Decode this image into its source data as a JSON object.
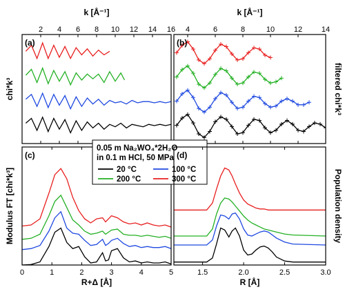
{
  "chart_data": [
    {
      "panel": "(a)",
      "type": "line",
      "xlabel": "k [Å⁻¹]",
      "ylabel": "chi*k³",
      "xlim": [
        0,
        16
      ],
      "xticks": [
        2,
        4,
        6,
        8,
        10,
        12,
        14,
        16
      ],
      "series": [
        {
          "color": "#000000",
          "x": [
            0.4,
            1,
            1.6,
            2.2,
            2.8,
            3.4,
            4,
            4.6,
            5.2,
            5.8,
            6.4,
            7,
            7.6,
            8.2,
            8.8,
            9.4,
            10,
            10.6,
            11.2,
            11.8,
            12.4,
            13,
            13.6,
            14.2,
            14.8,
            15.4,
            16
          ],
          "y": [
            0.2,
            0.6,
            -0.4,
            0.7,
            -0.5,
            0.6,
            -0.3,
            0.5,
            -0.6,
            0.4,
            -0.4,
            0.3,
            -0.2,
            0.2,
            -0.3,
            0.1,
            -0.1,
            0.2,
            -0.2,
            0.1,
            0.0,
            -0.1,
            0.1,
            0.0,
            0.1,
            0.0,
            0.1
          ]
        },
        {
          "color": "#1f49e0",
          "x": [
            0.4,
            1,
            1.6,
            2.2,
            2.8,
            3.4,
            4,
            4.6,
            5.2,
            5.8,
            6.4,
            7,
            7.6,
            8.2,
            8.8,
            9.4,
            10,
            10.6,
            11.2,
            11.8,
            12.4,
            13,
            13.6,
            14.2,
            14.8,
            15.4,
            16
          ],
          "y": [
            2.2,
            2.6,
            1.6,
            2.7,
            1.5,
            2.6,
            1.7,
            2.5,
            1.4,
            2.4,
            1.6,
            2.3,
            1.8,
            2.2,
            1.7,
            2.1,
            1.9,
            2.0,
            1.8,
            2.1,
            1.9,
            2.0,
            2.0,
            1.9,
            2.0,
            1.9,
            2.0
          ]
        },
        {
          "color": "#22b022",
          "x": [
            0.4,
            1,
            1.6,
            2.2,
            2.8,
            3.4,
            4,
            4.6,
            5.2,
            5.8,
            6.4,
            7,
            7.6,
            8.2,
            8.8,
            9.4,
            10,
            10.6,
            11
          ],
          "y": [
            4.2,
            4.7,
            3.6,
            4.8,
            3.5,
            4.6,
            3.7,
            4.5,
            3.4,
            4.4,
            3.8,
            4.3,
            3.9,
            4.3,
            3.6,
            4.5,
            3.7,
            4.4,
            3.8
          ]
        },
        {
          "color": "#e81e1e",
          "x": [
            0.4,
            1,
            1.6,
            2.2,
            2.8,
            3.4,
            4,
            4.6,
            5.2,
            5.8,
            6.4,
            7,
            7.6,
            8.2,
            8.8,
            9.4
          ],
          "y": [
            6.2,
            6.7,
            5.6,
            6.9,
            5.6,
            6.7,
            5.7,
            6.6,
            5.6,
            6.5,
            5.9,
            6.4,
            5.8,
            6.3,
            5.9,
            6.2
          ]
        }
      ]
    },
    {
      "panel": "(b)",
      "type": "line",
      "xlabel": "k [Å⁻¹]",
      "ylabel": "filtered chi*k³",
      "xlim": [
        3,
        14
      ],
      "xticks": [
        4,
        6,
        8,
        10,
        12,
        14
      ],
      "series": [
        {
          "color": "#000000",
          "x": [
            3.2,
            3.6,
            4,
            4.4,
            4.8,
            5.2,
            5.6,
            6,
            6.4,
            6.8,
            7.2,
            7.6,
            8,
            8.4,
            8.8,
            9.2,
            9.6,
            10,
            10.4,
            10.8,
            11.2,
            11.6,
            12,
            12.4,
            12.8,
            13.2,
            13.6,
            14
          ],
          "y": [
            0.1,
            0.7,
            1.0,
            0.3,
            -0.6,
            -0.9,
            -0.4,
            0.4,
            0.8,
            0.6,
            0.0,
            -0.6,
            -0.5,
            0.1,
            0.6,
            0.5,
            -0.1,
            -0.5,
            -0.3,
            0.2,
            0.5,
            0.2,
            -0.3,
            -0.4,
            0.0,
            0.3,
            0.2,
            -0.1
          ]
        },
        {
          "color": "#1f49e0",
          "x": [
            3.2,
            3.6,
            4,
            4.4,
            4.8,
            5.2,
            5.6,
            6,
            6.4,
            6.8,
            7.2,
            7.6,
            8,
            8.4,
            8.8,
            9.2,
            9.6,
            10,
            10.4,
            10.8,
            11.2,
            11.6,
            12,
            12.4,
            12.8
          ],
          "y": [
            2.1,
            2.7,
            3.0,
            2.4,
            1.5,
            1.2,
            1.6,
            2.3,
            2.8,
            2.6,
            2.0,
            1.5,
            1.6,
            2.1,
            2.5,
            2.4,
            1.9,
            1.6,
            1.7,
            2.1,
            2.3,
            2.1,
            1.8,
            1.8,
            2.0
          ]
        },
        {
          "color": "#22b022",
          "x": [
            3.2,
            3.6,
            4,
            4.4,
            4.8,
            5.2,
            5.6,
            6,
            6.4,
            6.8,
            7.2,
            7.6,
            8,
            8.4,
            8.8,
            9.2,
            9.6,
            10,
            10.4,
            10.8
          ],
          "y": [
            4.1,
            4.7,
            5.0,
            4.4,
            3.5,
            3.2,
            3.6,
            4.3,
            4.8,
            4.6,
            4.0,
            3.5,
            3.6,
            4.1,
            4.5,
            4.4,
            3.9,
            3.6,
            3.7,
            4.0
          ]
        },
        {
          "color": "#e81e1e",
          "x": [
            3.2,
            3.6,
            4,
            4.4,
            4.8,
            5.2,
            5.6,
            6,
            6.4,
            6.8,
            7.2,
            7.6,
            8,
            8.4,
            8.8,
            9.2,
            9.6,
            10
          ],
          "y": [
            6.1,
            6.7,
            7.0,
            6.4,
            5.5,
            5.2,
            5.6,
            6.3,
            6.8,
            6.6,
            6.0,
            5.5,
            5.6,
            6.1,
            6.5,
            6.4,
            5.9,
            5.7
          ]
        }
      ]
    },
    {
      "panel": "(c)",
      "type": "line",
      "xlabel": "R+Δ [Å]",
      "ylabel": "Modulus FT [chi*k³]",
      "xlim": [
        0,
        5
      ],
      "xticks": [
        0,
        1,
        2,
        3,
        4,
        5
      ],
      "legend": {
        "title_lines": [
          "0.05 m Na₂WO₄*2H₂O",
          "in 0.1 m HCl, 50 MPa"
        ],
        "entries": [
          {
            "label": "20 °C",
            "color": "#000000"
          },
          {
            "label": "100 °C",
            "color": "#1f49e0"
          },
          {
            "label": "200 °C",
            "color": "#22b022"
          },
          {
            "label": "300 °C",
            "color": "#e81e1e"
          }
        ]
      },
      "series": [
        {
          "color": "#000000",
          "x": [
            0,
            0.3,
            0.6,
            0.9,
            1.1,
            1.3,
            1.5,
            1.7,
            1.9,
            2.1,
            2.3,
            2.5,
            2.7,
            2.8,
            2.9,
            3.0,
            3.2,
            3.4,
            3.6,
            3.8,
            4.0,
            4.2,
            4.4,
            4.6,
            4.8,
            5.0
          ],
          "y": [
            0.0,
            0.05,
            0.3,
            1.8,
            3.2,
            3.6,
            2.2,
            1.6,
            1.8,
            0.8,
            0.2,
            0.3,
            1.2,
            0.4,
            0.5,
            1.4,
            1.6,
            0.7,
            0.3,
            0.4,
            0.2,
            0.3,
            0.2,
            0.2,
            0.3,
            0.1
          ]
        },
        {
          "color": "#1f49e0",
          "x": [
            0,
            0.3,
            0.6,
            0.9,
            1.1,
            1.3,
            1.5,
            1.7,
            1.9,
            2.1,
            2.3,
            2.5,
            2.7,
            2.8,
            2.9,
            3.0,
            3.2,
            3.4,
            3.6,
            3.8,
            4.0,
            4.2,
            4.4,
            4.6,
            4.8,
            5.0
          ],
          "y": [
            1.5,
            1.6,
            1.9,
            3.3,
            4.6,
            5.2,
            3.6,
            3.1,
            3.0,
            2.4,
            1.9,
            2.0,
            2.5,
            1.9,
            2.1,
            2.4,
            2.6,
            2.1,
            1.8,
            1.9,
            1.7,
            1.8,
            1.7,
            1.7,
            1.8,
            1.6
          ]
        },
        {
          "color": "#22b022",
          "x": [
            0,
            0.3,
            0.6,
            0.9,
            1.1,
            1.3,
            1.5,
            1.7,
            1.9,
            2.1,
            2.3,
            2.5,
            2.7,
            2.8,
            2.9,
            3.0,
            3.2,
            3.4,
            3.6,
            3.8,
            4.0,
            4.2,
            4.4,
            4.6,
            4.8,
            5.0
          ],
          "y": [
            2.5,
            2.6,
            3.0,
            4.8,
            6.2,
            6.8,
            5.6,
            4.4,
            3.9,
            3.3,
            3.0,
            3.1,
            3.3,
            3.0,
            3.2,
            3.4,
            3.5,
            3.0,
            2.9,
            2.9,
            2.8,
            2.9,
            2.8,
            2.7,
            2.8,
            2.6
          ]
        },
        {
          "color": "#e81e1e",
          "x": [
            0,
            0.3,
            0.6,
            0.9,
            1.1,
            1.3,
            1.5,
            1.7,
            1.9,
            2.1,
            2.3,
            2.5,
            2.7,
            2.8,
            2.9,
            3.0,
            3.2,
            3.4,
            3.6,
            3.8,
            4.0,
            4.2,
            4.4,
            4.6,
            4.8,
            5.0
          ],
          "y": [
            3.8,
            3.9,
            4.5,
            7.0,
            8.8,
            9.4,
            8.4,
            6.6,
            5.3,
            4.5,
            4.1,
            4.5,
            4.6,
            4.2,
            4.5,
            4.8,
            4.6,
            4.2,
            4.0,
            4.1,
            3.9,
            4.1,
            3.9,
            3.8,
            3.9,
            3.7
          ]
        }
      ]
    },
    {
      "panel": "(d)",
      "type": "line",
      "xlabel": "R [Å]",
      "ylabel": "Population density",
      "xlim": [
        1.15,
        3.0
      ],
      "xticks": [
        1.5,
        2.0,
        2.5,
        3.0
      ],
      "series": [
        {
          "color": "#000000",
          "x": [
            1.15,
            1.4,
            1.55,
            1.62,
            1.67,
            1.72,
            1.77,
            1.82,
            1.86,
            1.9,
            1.95,
            2.0,
            2.05,
            2.1,
            2.15,
            2.2,
            2.25,
            2.3,
            2.35,
            2.4,
            2.5,
            2.6,
            3.0
          ],
          "y": [
            0.0,
            0.0,
            0.0,
            0.4,
            1.8,
            3.4,
            3.2,
            2.5,
            3.1,
            3.4,
            2.6,
            1.2,
            0.7,
            0.8,
            1.2,
            1.5,
            1.6,
            1.4,
            1.0,
            0.5,
            0.1,
            0.0,
            0.0
          ]
        },
        {
          "color": "#1f49e0",
          "x": [
            1.15,
            1.4,
            1.55,
            1.62,
            1.67,
            1.72,
            1.77,
            1.82,
            1.86,
            1.9,
            1.95,
            2.0,
            2.05,
            2.1,
            2.15,
            2.2,
            2.25,
            2.3,
            2.35,
            2.4,
            2.5,
            2.6,
            3.0
          ],
          "y": [
            1.7,
            1.7,
            1.7,
            2.2,
            3.6,
            4.7,
            4.6,
            4.3,
            4.8,
            4.9,
            4.3,
            3.3,
            2.7,
            2.6,
            2.8,
            3.0,
            3.1,
            3.0,
            2.7,
            2.4,
            2.0,
            1.8,
            1.7
          ]
        },
        {
          "color": "#22b022",
          "x": [
            1.15,
            1.4,
            1.55,
            1.62,
            1.67,
            1.72,
            1.77,
            1.82,
            1.86,
            1.9,
            1.95,
            2.0,
            2.05,
            2.1,
            2.15,
            2.2,
            2.25,
            2.3,
            2.35,
            2.4,
            2.5,
            2.6,
            3.0
          ],
          "y": [
            2.6,
            2.6,
            2.6,
            3.3,
            4.8,
            5.9,
            6.4,
            6.3,
            6.0,
            5.6,
            5.1,
            4.6,
            4.2,
            3.9,
            3.7,
            3.5,
            3.3,
            3.2,
            3.1,
            3.0,
            2.8,
            2.7,
            2.6
          ]
        },
        {
          "color": "#e81e1e",
          "x": [
            1.15,
            1.4,
            1.55,
            1.62,
            1.67,
            1.72,
            1.77,
            1.82,
            1.86,
            1.9,
            1.95,
            2.0,
            2.05,
            2.1,
            2.15,
            2.2,
            2.25,
            2.3,
            2.35,
            2.4,
            2.5,
            2.6,
            3.0
          ],
          "y": [
            5.2,
            5.2,
            5.2,
            5.9,
            7.3,
            8.6,
            9.4,
            9.2,
            8.6,
            7.8,
            6.9,
            6.2,
            5.8,
            5.6,
            5.4,
            5.3,
            5.3,
            5.2,
            5.2,
            5.2,
            5.2,
            5.2,
            5.2
          ]
        }
      ]
    }
  ]
}
